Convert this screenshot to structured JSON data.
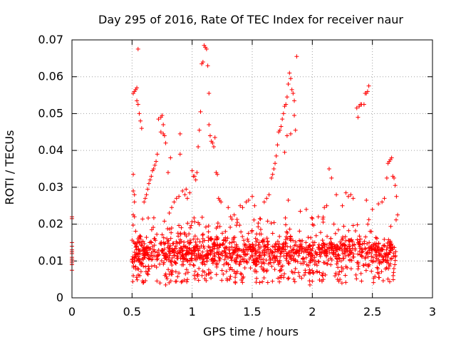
{
  "chart_data": {
    "type": "scatter",
    "title": "Day 295 of 2016, Rate Of TEC Index for receiver naur",
    "xlabel": "GPS time / hours",
    "ylabel": "ROTI / TECUs",
    "xlim": [
      0,
      3
    ],
    "ylim": [
      0,
      0.07
    ],
    "x_ticks": [
      0,
      0.5,
      1,
      1.5,
      2,
      2.5,
      3
    ],
    "x_tick_labels": [
      "0",
      "0.5",
      "1",
      "1.5",
      "2",
      "2.5",
      "3"
    ],
    "y_ticks": [
      0,
      0.01,
      0.02,
      0.03,
      0.04,
      0.05,
      0.06,
      0.07
    ],
    "y_tick_labels": [
      "0",
      "0.01",
      "0.02",
      "0.03",
      "0.04",
      "0.05",
      "0.06",
      "0.07"
    ],
    "grid": true,
    "marker": "+",
    "color": "#ff0000",
    "series": [
      {
        "name": "ROTI",
        "points": [
          [
            0.0,
            0.022
          ],
          [
            0.0,
            0.0215
          ],
          [
            0.0,
            0.015
          ],
          [
            0.0,
            0.014
          ],
          [
            0.0,
            0.013
          ],
          [
            0.0,
            0.0125
          ],
          [
            0.0,
            0.012
          ],
          [
            0.0,
            0.011
          ],
          [
            0.0,
            0.0105
          ],
          [
            0.0,
            0.01
          ],
          [
            0.0,
            0.0095
          ],
          [
            0.0,
            0.009
          ],
          [
            0.0,
            0.0075
          ],
          [
            0.51,
            0.0555
          ],
          [
            0.52,
            0.056
          ],
          [
            0.53,
            0.0565
          ],
          [
            0.54,
            0.057
          ],
          [
            0.55,
            0.0675
          ],
          [
            0.54,
            0.0535
          ],
          [
            0.55,
            0.0525
          ],
          [
            0.56,
            0.05
          ],
          [
            0.57,
            0.048
          ],
          [
            0.58,
            0.046
          ],
          [
            0.51,
            0.0335
          ],
          [
            0.51,
            0.029
          ],
          [
            0.52,
            0.028
          ],
          [
            0.52,
            0.026
          ],
          [
            0.51,
            0.0225
          ],
          [
            0.52,
            0.022
          ],
          [
            0.6,
            0.026
          ],
          [
            0.61,
            0.027
          ],
          [
            0.62,
            0.028
          ],
          [
            0.63,
            0.0295
          ],
          [
            0.64,
            0.031
          ],
          [
            0.65,
            0.032
          ],
          [
            0.66,
            0.033
          ],
          [
            0.67,
            0.0345
          ],
          [
            0.68,
            0.035
          ],
          [
            0.69,
            0.036
          ],
          [
            0.7,
            0.037
          ],
          [
            0.71,
            0.039
          ],
          [
            0.72,
            0.0485
          ],
          [
            0.74,
            0.049
          ],
          [
            0.75,
            0.0495
          ],
          [
            0.76,
            0.047
          ],
          [
            0.74,
            0.045
          ],
          [
            0.76,
            0.0445
          ],
          [
            0.77,
            0.044
          ],
          [
            0.78,
            0.042
          ],
          [
            0.8,
            0.034
          ],
          [
            0.82,
            0.038
          ],
          [
            0.9,
            0.0445
          ],
          [
            0.9,
            0.039
          ],
          [
            0.92,
            0.029
          ],
          [
            0.94,
            0.028
          ],
          [
            0.95,
            0.0295
          ],
          [
            0.96,
            0.027
          ],
          [
            0.98,
            0.0285
          ],
          [
            0.81,
            0.023
          ],
          [
            0.83,
            0.0245
          ],
          [
            0.85,
            0.026
          ],
          [
            0.87,
            0.027
          ],
          [
            0.89,
            0.0275
          ],
          [
            1.0,
            0.0345
          ],
          [
            1.01,
            0.033
          ],
          [
            1.02,
            0.033
          ],
          [
            1.03,
            0.032
          ],
          [
            1.04,
            0.034
          ],
          [
            1.05,
            0.041
          ],
          [
            1.06,
            0.0455
          ],
          [
            1.07,
            0.0505
          ],
          [
            1.08,
            0.0635
          ],
          [
            1.09,
            0.064
          ],
          [
            1.1,
            0.0685
          ],
          [
            1.11,
            0.068
          ],
          [
            1.12,
            0.0675
          ],
          [
            1.13,
            0.063
          ],
          [
            1.14,
            0.0555
          ],
          [
            1.14,
            0.047
          ],
          [
            1.15,
            0.044
          ],
          [
            1.16,
            0.0425
          ],
          [
            1.17,
            0.042
          ],
          [
            1.18,
            0.041
          ],
          [
            1.19,
            0.0435
          ],
          [
            1.2,
            0.034
          ],
          [
            1.21,
            0.0335
          ],
          [
            1.22,
            0.027
          ],
          [
            1.23,
            0.0265
          ],
          [
            1.24,
            0.026
          ],
          [
            1.3,
            0.0245
          ],
          [
            1.32,
            0.022
          ],
          [
            1.35,
            0.0225
          ],
          [
            1.4,
            0.025
          ],
          [
            1.42,
            0.0245
          ],
          [
            1.45,
            0.026
          ],
          [
            1.47,
            0.0265
          ],
          [
            1.5,
            0.0275
          ],
          [
            1.52,
            0.025
          ],
          [
            1.6,
            0.026
          ],
          [
            1.62,
            0.027
          ],
          [
            1.64,
            0.028
          ],
          [
            1.66,
            0.0325
          ],
          [
            1.67,
            0.0335
          ],
          [
            1.68,
            0.035
          ],
          [
            1.69,
            0.0365
          ],
          [
            1.7,
            0.0385
          ],
          [
            1.71,
            0.0415
          ],
          [
            1.72,
            0.045
          ],
          [
            1.73,
            0.0455
          ],
          [
            1.74,
            0.0465
          ],
          [
            1.75,
            0.0485
          ],
          [
            1.76,
            0.05
          ],
          [
            1.77,
            0.052
          ],
          [
            1.78,
            0.0525
          ],
          [
            1.79,
            0.0545
          ],
          [
            1.8,
            0.058
          ],
          [
            1.81,
            0.061
          ],
          [
            1.82,
            0.0595
          ],
          [
            1.83,
            0.0565
          ],
          [
            1.84,
            0.0555
          ],
          [
            1.85,
            0.0535
          ],
          [
            1.77,
            0.0395
          ],
          [
            1.79,
            0.044
          ],
          [
            1.82,
            0.0445
          ],
          [
            1.85,
            0.0495
          ],
          [
            1.86,
            0.0455
          ],
          [
            1.87,
            0.0655
          ],
          [
            1.8,
            0.0265
          ],
          [
            1.9,
            0.0235
          ],
          [
            1.95,
            0.024
          ],
          [
            2.0,
            0.0215
          ],
          [
            2.05,
            0.022
          ],
          [
            2.1,
            0.0245
          ],
          [
            2.12,
            0.025
          ],
          [
            2.14,
            0.035
          ],
          [
            2.16,
            0.0325
          ],
          [
            2.2,
            0.028
          ],
          [
            2.25,
            0.025
          ],
          [
            2.28,
            0.0285
          ],
          [
            2.3,
            0.0275
          ],
          [
            2.32,
            0.028
          ],
          [
            2.34,
            0.027
          ],
          [
            2.37,
            0.0515
          ],
          [
            2.38,
            0.049
          ],
          [
            2.39,
            0.052
          ],
          [
            2.4,
            0.0525
          ],
          [
            2.41,
            0.0525
          ],
          [
            2.43,
            0.0525
          ],
          [
            2.44,
            0.0555
          ],
          [
            2.45,
            0.0555
          ],
          [
            2.46,
            0.056
          ],
          [
            2.47,
            0.0575
          ],
          [
            2.45,
            0.0265
          ],
          [
            2.5,
            0.024
          ],
          [
            2.55,
            0.0255
          ],
          [
            2.58,
            0.026
          ],
          [
            2.6,
            0.027
          ],
          [
            2.62,
            0.0325
          ],
          [
            2.63,
            0.0365
          ],
          [
            2.64,
            0.037
          ],
          [
            2.65,
            0.0375
          ],
          [
            2.66,
            0.038
          ],
          [
            2.67,
            0.033
          ],
          [
            2.68,
            0.0325
          ],
          [
            2.69,
            0.0305
          ],
          [
            2.7,
            0.0275
          ],
          [
            2.71,
            0.0225
          ],
          [
            2.21,
            0.005
          ],
          [
            2.22,
            0.0045
          ],
          [
            2.23,
            0.005
          ],
          [
            2.0,
            0.0045
          ],
          [
            1.98,
            0.0035
          ],
          [
            0.78,
            0.0035
          ]
        ]
      }
    ]
  }
}
